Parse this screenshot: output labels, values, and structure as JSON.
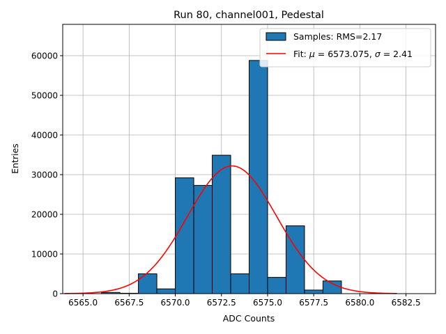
{
  "chart_data": {
    "type": "bar",
    "title": "Run 80, channel001, Pedestal",
    "xlabel": "ADC Counts",
    "ylabel": "Entries",
    "xlim": [
      6563.9,
      6584.1
    ],
    "ylim": [
      0,
      67900
    ],
    "grid": true,
    "x_ticks": [
      6565.0,
      6567.5,
      6570.0,
      6572.5,
      6575.0,
      6577.5,
      6580.0,
      6582.5
    ],
    "x_tick_labels": [
      "6565.0",
      "6567.5",
      "6570.0",
      "6572.5",
      "6575.0",
      "6577.5",
      "6580.0",
      "6582.5"
    ],
    "y_ticks": [
      0,
      10000,
      20000,
      30000,
      40000,
      50000,
      60000
    ],
    "y_tick_labels": [
      "0",
      "10000",
      "20000",
      "30000",
      "40000",
      "50000",
      "60000"
    ],
    "histogram": {
      "name": "Samples: RMS=2.17",
      "color": "#1f77b4",
      "edge_color": "#000000",
      "bin_edges": [
        6566.0,
        6567.0,
        6568.0,
        6569.0,
        6570.0,
        6571.0,
        6572.0,
        6573.0,
        6574.0,
        6575.0,
        6576.0,
        6577.0,
        6578.0,
        6579.0
      ],
      "counts": [
        300,
        100,
        5000,
        1200,
        29200,
        27300,
        34900,
        5000,
        58800,
        4100,
        17100,
        900,
        3200
      ]
    },
    "fit": {
      "name": "Fit: μ = 6573.075, σ = 2.41",
      "legend_prefix": "Fit: ",
      "legend_mu": "μ",
      "legend_mid": " = 6573.075, ",
      "legend_sigma": "σ",
      "legend_suffix": " = 2.41",
      "type": "gaussian",
      "mu": 6573.075,
      "sigma": 2.41,
      "amplitude": 32200,
      "x_range": [
        6564.0,
        6582.0
      ],
      "color": "#ff0000"
    },
    "legend_position": "top-right"
  }
}
